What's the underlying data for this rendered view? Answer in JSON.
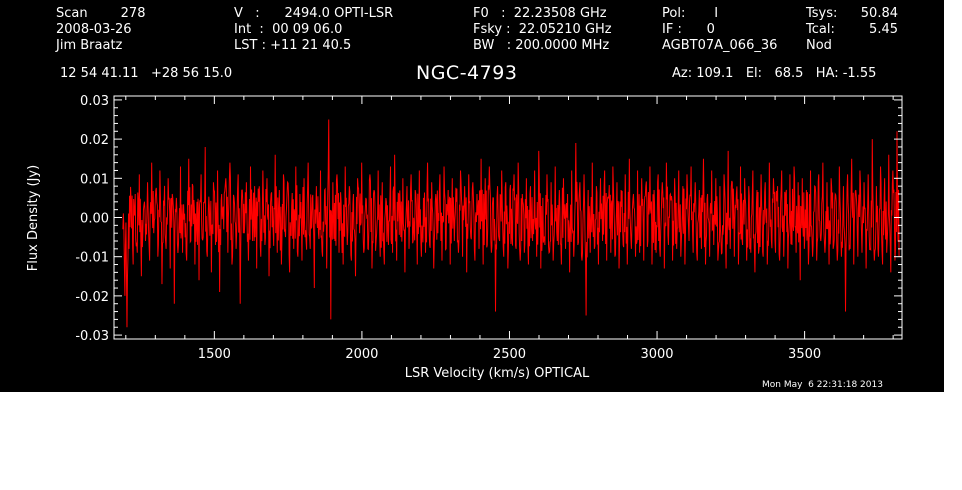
{
  "header": {
    "col1": [
      "Scan        278",
      "2008-03-26",
      "Jim Braatz"
    ],
    "col2": [
      "V   :      2494.0 OPTI-LSR",
      "Int  :  00 09 06.0",
      "LST : +11 21 40.5"
    ],
    "col3": [
      "F0   :  22.23508 GHz",
      "Fsky :  22.05210 GHz",
      "BW   : 200.0000 MHz"
    ],
    "col4": [
      "Pol:       I",
      "IF :      0",
      "AGBT07A_066_36"
    ],
    "col5_labels": [
      "Tsys:",
      "Tcal:",
      "Nod"
    ],
    "col5_values": [
      "50.84",
      "5.45",
      ""
    ],
    "coords": "12 54 41.11   +28 56 15.0",
    "source": "NGC-4793",
    "pointing": "Az: 109.1   El:   68.5   HA: -1.55",
    "timestamp": "Mon May  6 22:31:18 2013"
  },
  "colors": {
    "background": "#000000",
    "foreground": "#ffffff",
    "series": "#ff0000"
  },
  "chart_data": {
    "type": "line",
    "title": "NGC-4793",
    "xlabel": "LSR Velocity (km/s) OPTICAL",
    "ylabel": "Flux Density (Jy)",
    "xlim": [
      1160,
      3830
    ],
    "ylim": [
      -0.031,
      0.031
    ],
    "xticks": [
      1500,
      2000,
      2500,
      3000,
      3500
    ],
    "xtick_labels": [
      "1500",
      "2000",
      "2500",
      "3000",
      "3500"
    ],
    "yticks": [
      -0.03,
      -0.02,
      -0.01,
      0.0,
      0.01,
      0.02,
      0.03
    ],
    "ytick_labels": [
      "-0.03",
      "-0.02",
      "-0.01",
      "0.00",
      "0.01",
      "0.02",
      "0.03"
    ],
    "grid": false,
    "series": [
      {
        "x_start": 1190,
        "x_end": 3820,
        "values": [
          -0.003,
          -0.02,
          -0.028,
          -0.008,
          0.004,
          -0.012,
          0.006,
          -0.009,
          0.011,
          -0.015,
          0.002,
          -0.006,
          0.009,
          -0.011,
          0.014,
          -0.004,
          0.007,
          -0.01,
          0.012,
          -0.017,
          0.003,
          -0.008,
          0.01,
          -0.013,
          0.006,
          -0.022,
          0.005,
          -0.007,
          0.013,
          -0.009,
          0.001,
          -0.011,
          0.015,
          -0.006,
          0.008,
          -0.012,
          0.004,
          -0.016,
          0.011,
          -0.005,
          0.018,
          -0.01,
          0.003,
          -0.014,
          0.009,
          -0.007,
          0.012,
          -0.019,
          0.006,
          -0.003,
          0.01,
          -0.009,
          0.014,
          -0.012,
          0.005,
          -0.008,
          0.011,
          -0.022,
          0.007,
          -0.004,
          0.009,
          -0.011,
          0.013,
          -0.006,
          0.008,
          -0.013,
          0.004,
          -0.01,
          0.012,
          -0.007,
          0.01,
          -0.015,
          0.006,
          -0.003,
          0.016,
          -0.009,
          0.007,
          -0.012,
          0.011,
          -0.005,
          0.009,
          -0.014,
          0.003,
          -0.008,
          0.013,
          -0.01,
          0.006,
          -0.011,
          0.01,
          -0.006,
          0.014,
          -0.008,
          0.005,
          -0.018,
          0.008,
          -0.004,
          0.012,
          -0.01,
          0.007,
          -0.013,
          0.025,
          -0.026,
          0.009,
          -0.006,
          0.011,
          -0.009,
          0.004,
          -0.012,
          0.013,
          -0.007,
          0.008,
          -0.011,
          0.006,
          -0.015,
          0.01,
          -0.004,
          0.014,
          -0.009,
          0.005,
          -0.008,
          0.011,
          -0.013,
          0.007,
          -0.006,
          0.012,
          -0.01,
          0.009,
          -0.012,
          0.004,
          -0.007,
          0.013,
          -0.009,
          0.016,
          -0.011,
          0.006,
          -0.005,
          0.01,
          -0.014,
          0.008,
          -0.008,
          0.011,
          -0.006,
          0.007,
          -0.012,
          0.012,
          -0.01,
          0.005,
          -0.009,
          0.014,
          -0.007,
          0.009,
          -0.013,
          0.006,
          -0.004,
          0.011,
          -0.011,
          0.013,
          -0.008,
          0.007,
          -0.012,
          0.01,
          -0.006,
          0.004,
          -0.009,
          0.012,
          -0.01,
          0.008,
          -0.014,
          0.011,
          -0.005,
          0.009,
          -0.011,
          0.006,
          -0.008,
          0.015,
          -0.012,
          0.01,
          -0.007,
          0.013,
          -0.009,
          0.005,
          -0.024,
          0.008,
          -0.006,
          0.012,
          -0.01,
          0.009,
          -0.013,
          0.007,
          -0.005,
          0.011,
          -0.008,
          0.014,
          -0.011,
          0.006,
          -0.009,
          0.01,
          -0.012,
          0.008,
          -0.006,
          0.012,
          -0.01,
          0.017,
          -0.013,
          0.005,
          -0.007,
          0.011,
          -0.009,
          0.009,
          -0.011,
          0.013,
          -0.006,
          0.007,
          -0.012,
          0.01,
          -0.008,
          0.006,
          -0.014,
          0.012,
          -0.01,
          0.019,
          -0.007,
          0.009,
          -0.011,
          0.011,
          -0.025,
          0.007,
          -0.009,
          0.014,
          -0.008,
          0.008,
          -0.012,
          0.01,
          -0.006,
          0.012,
          -0.011,
          0.005,
          -0.009,
          0.013,
          -0.01,
          0.009,
          -0.013,
          0.007,
          -0.007,
          0.011,
          -0.012,
          0.015,
          -0.008,
          0.006,
          -0.01,
          0.012,
          -0.009,
          0.01,
          -0.011,
          0.008,
          -0.006,
          0.013,
          -0.012,
          0.007,
          -0.009,
          0.011,
          -0.01,
          0.009,
          -0.013,
          0.014,
          -0.007,
          0.006,
          -0.011,
          0.01,
          -0.008,
          0.012,
          -0.01,
          0.008,
          -0.012,
          0.011,
          -0.006,
          0.013,
          -0.009,
          0.009,
          -0.011,
          0.007,
          -0.008,
          0.015,
          -0.012,
          0.006,
          -0.01,
          0.012,
          -0.007,
          0.01,
          -0.011,
          0.008,
          -0.009,
          0.011,
          -0.013,
          0.017,
          -0.008,
          0.009,
          -0.01,
          0.006,
          -0.012,
          0.013,
          -0.007,
          0.01,
          -0.011,
          0.008,
          -0.009,
          0.012,
          -0.014,
          0.007,
          -0.008,
          0.011,
          -0.01,
          0.009,
          -0.012,
          0.014,
          -0.006,
          0.01,
          -0.009,
          0.008,
          -0.011,
          0.012,
          -0.01,
          0.006,
          -0.013,
          0.011,
          -0.007,
          0.013,
          -0.009,
          0.009,
          -0.016,
          0.01,
          -0.008,
          0.007,
          -0.012,
          0.012,
          -0.01,
          0.008,
          -0.011,
          0.011,
          -0.006,
          0.014,
          -0.009,
          0.009,
          -0.012,
          0.01,
          -0.008,
          0.006,
          -0.011,
          0.013,
          -0.01,
          0.008,
          -0.024,
          0.011,
          -0.007,
          0.015,
          -0.012,
          0.007,
          -0.01,
          0.012,
          -0.009,
          0.009,
          -0.013,
          0.011,
          -0.008,
          0.02,
          -0.011,
          0.008,
          -0.01,
          0.013,
          -0.012,
          0.01,
          -0.009,
          0.016,
          -0.014,
          0.012,
          -0.011,
          0.022,
          -0.01
        ]
      }
    ]
  }
}
